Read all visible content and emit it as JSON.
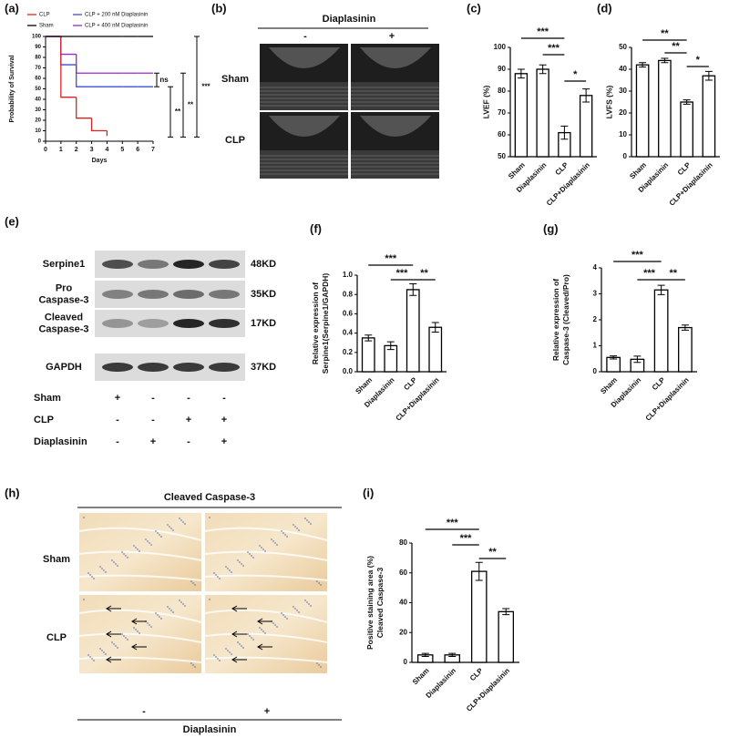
{
  "figure": {
    "panel_labels": [
      "(a)",
      "(b)",
      "(c)",
      "(d)",
      "(e)",
      "(f)",
      "(g)",
      "(h)",
      "(i)"
    ],
    "echo": {
      "title": "Diaplasinin",
      "columns": [
        "-",
        "+"
      ],
      "rows": [
        "Sham",
        "CLP"
      ]
    },
    "blot": {
      "rows": [
        [
          "Serpine1"
        ],
        [
          "Pro",
          "Caspase-3"
        ],
        [
          "Cleaved",
          "Caspase-3"
        ],
        [
          "GAPDH"
        ]
      ],
      "sizes": [
        "48KD",
        "35KD",
        "17KD",
        "37KD"
      ],
      "conditions": [
        {
          "name": "Sham",
          "signs": [
            "+",
            "-",
            "-",
            "-"
          ]
        },
        {
          "name": "CLP",
          "signs": [
            "-",
            "-",
            "+",
            "+"
          ]
        },
        {
          "name": "Diaplasinin",
          "signs": [
            "-",
            "+",
            "-",
            "+"
          ]
        }
      ]
    },
    "histology": {
      "title": "Cleaved Caspase-3",
      "rows": [
        "Sham",
        "CLP"
      ],
      "columns": [
        "-",
        "+"
      ],
      "xlabel": "Diaplasinin"
    }
  },
  "chart_data": [
    {
      "type": "line",
      "step": true,
      "xlabel": "Days",
      "ylabel": "Probability of Survival",
      "x": [
        0,
        1,
        2,
        3,
        4,
        5,
        6,
        7
      ],
      "xlim": [
        0,
        7
      ],
      "xticks": [
        0,
        1,
        2,
        3,
        4,
        5,
        6,
        7
      ],
      "ylim": [
        0,
        100
      ],
      "yticks": [
        0,
        10,
        20,
        30,
        40,
        50,
        60,
        70,
        80,
        90,
        100
      ],
      "series": [
        {
          "name": "CLP",
          "color": "#e0201b",
          "values": [
            100,
            42,
            22,
            10,
            5,
            null,
            null,
            null
          ]
        },
        {
          "name": "Sham",
          "color": "#000000",
          "values": [
            100,
            100,
            100,
            100,
            100,
            100,
            100,
            100
          ]
        },
        {
          "name": "CLP + 200 nM Diaplasinin",
          "color": "#3b4fd8",
          "values": [
            100,
            73,
            52,
            52,
            52,
            52,
            52,
            52
          ]
        },
        {
          "name": "CLP + 400 nM Diaplasinin",
          "color": "#9b27c9",
          "values": [
            100,
            83,
            65,
            65,
            65,
            65,
            65,
            65
          ]
        }
      ],
      "annotations": [
        "ns",
        "**",
        "**",
        "***"
      ]
    },
    {
      "type": "bar",
      "ylabel": [
        "LVEF (%)"
      ],
      "categories": [
        "Sham",
        "Diaplasinin",
        "CLP",
        "CLP+Diaplasinin"
      ],
      "values": [
        88,
        90,
        61,
        78
      ],
      "errors": [
        2,
        2,
        3,
        3
      ],
      "color": "#ffffff",
      "ylim": [
        50,
        100
      ],
      "yticks": [
        50,
        60,
        70,
        80,
        90,
        100
      ],
      "annotations": [
        "***",
        "***",
        "*"
      ]
    },
    {
      "type": "bar",
      "ylabel": [
        "LVFS (%)"
      ],
      "categories": [
        "Sham",
        "Diaplasinin",
        "CLP",
        "CLP+Diaplasinin"
      ],
      "values": [
        42,
        44,
        25,
        37
      ],
      "errors": [
        1,
        1,
        1,
        2
      ],
      "color": "#ffffff",
      "ylim": [
        0,
        50
      ],
      "yticks": [
        0,
        10,
        20,
        30,
        40,
        50
      ],
      "annotations": [
        "**",
        "**",
        "*"
      ]
    },
    {
      "type": "bar",
      "ylabel": [
        "Relative expression of",
        "Serpine1(Serpine1/GAPDH)"
      ],
      "categories": [
        "Sham",
        "Diaplasinin",
        "CLP",
        "CLP+Diaplasinin"
      ],
      "values": [
        0.35,
        0.27,
        0.85,
        0.46
      ],
      "errors": [
        0.03,
        0.04,
        0.06,
        0.05
      ],
      "color": "#ffffff",
      "ylim": [
        0,
        1
      ],
      "yticks": [
        {
          "value": 0,
          "label": "0.0"
        },
        0.2,
        0.4,
        0.6,
        0.8,
        {
          "value": 1,
          "label": "1.0"
        }
      ],
      "annotations": [
        "***",
        "***",
        "**"
      ]
    },
    {
      "type": "bar",
      "ylabel": [
        "Relative expression of",
        "Caspase-3 (Cleaved/Pro)"
      ],
      "categories": [
        "Sham",
        "Diaplasinin",
        "CLP",
        "CLP+Diaplasinin"
      ],
      "values": [
        0.55,
        0.48,
        3.15,
        1.7
      ],
      "errors": [
        0.06,
        0.12,
        0.18,
        0.1
      ],
      "color": "#ffffff",
      "ylim": [
        0,
        4
      ],
      "yticks": [
        0,
        1,
        2,
        3,
        4
      ],
      "annotations": [
        "***",
        "***",
        "**"
      ]
    },
    {
      "type": "bar",
      "ylabel": [
        "Positive staining area (%)",
        "Cleaved Caspase-3"
      ],
      "categories": [
        "Sham",
        "Diaplasinin",
        "CLP",
        "CLP+Diaplasinin"
      ],
      "values": [
        5,
        5,
        61,
        34
      ],
      "errors": [
        1,
        1,
        6,
        2
      ],
      "color": "#ffffff",
      "ylim": [
        0,
        80
      ],
      "yticks": [
        0,
        20,
        40,
        60,
        80
      ],
      "annotations": [
        "***",
        "***",
        "**"
      ]
    }
  ]
}
